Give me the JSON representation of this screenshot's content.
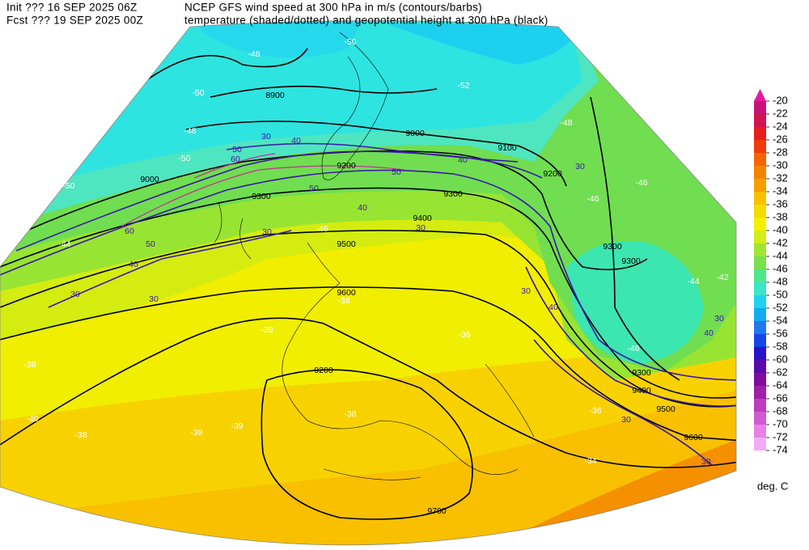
{
  "header": {
    "init": "Init  ??? 16 SEP 2025 06Z",
    "fcst": "Fcst ??? 19 SEP 2025 00Z",
    "title_1": "NCEP GFS wind speed at 300 hPa in m/s (contours/barbs)",
    "title_2": "temperature (shaded/dotted) and geopotential height at 300 hPa (black)"
  },
  "colorbar": {
    "levels": [
      -20,
      -22,
      -24,
      -26,
      -28,
      -30,
      -32,
      -34,
      -36,
      -38,
      -40,
      -42,
      -44,
      -46,
      -48,
      -50,
      -52,
      -54,
      -56,
      -58,
      -60,
      -62,
      -64,
      -66,
      -68,
      -70,
      -72,
      -74
    ],
    "colors": [
      "#e6199e",
      "#c8147a",
      "#d21450",
      "#e61e1e",
      "#f03c0a",
      "#f56400",
      "#f58200",
      "#f5a000",
      "#fac000",
      "#f5dc00",
      "#f5f000",
      "#d2ee14",
      "#a0e632",
      "#78e050",
      "#50e68c",
      "#3ce6c8",
      "#1ed2f0",
      "#14aaf0",
      "#1e78f0",
      "#1446e6",
      "#2814c8",
      "#5a0aaa",
      "#820aa0",
      "#a01eaa",
      "#be3cbe",
      "#d25ad2",
      "#e682e6",
      "#f5aaf5"
    ],
    "unit": "deg. C"
  },
  "map": {
    "height_labels": [
      8900,
      9000,
      9100,
      9200,
      9200,
      9300,
      9300,
      9400,
      9500,
      9300,
      9300,
      9600,
      9200,
      9300,
      9400,
      9500,
      9600,
      9700,
      9000
    ],
    "wind_labels": [
      30,
      40,
      50,
      60,
      50,
      50,
      40,
      30,
      30,
      40,
      30,
      30,
      30,
      40,
      40,
      30,
      30,
      30,
      30,
      50,
      60,
      40
    ],
    "temperature_labels": [
      -48,
      -50,
      -52,
      -50,
      -48,
      -50,
      -50,
      -46,
      -44,
      -46,
      -38,
      -38,
      -38,
      -40,
      -38,
      -38,
      -39,
      -38,
      -36,
      -36,
      -34,
      -42,
      -44,
      -46,
      -46,
      -48
    ]
  }
}
